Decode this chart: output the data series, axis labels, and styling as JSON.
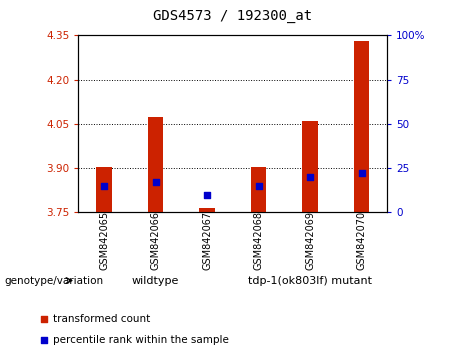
{
  "title": "GDS4573 / 192300_at",
  "samples": [
    "GSM842065",
    "GSM842066",
    "GSM842067",
    "GSM842068",
    "GSM842069",
    "GSM842070"
  ],
  "transformed_counts": [
    3.905,
    4.075,
    3.765,
    3.905,
    4.06,
    4.33
  ],
  "percentile_ranks": [
    15,
    17,
    10,
    15,
    20,
    22
  ],
  "ylim_left": [
    3.75,
    4.35
  ],
  "ylim_right": [
    0,
    100
  ],
  "yticks_left": [
    3.75,
    3.9,
    4.05,
    4.2,
    4.35
  ],
  "yticks_right": [
    0,
    25,
    50,
    75,
    100
  ],
  "grid_values": [
    3.9,
    4.05,
    4.2
  ],
  "bar_bottom": 3.75,
  "bar_color": "#CC2200",
  "dot_color": "#0000CC",
  "wildtype_label": "wildtype",
  "mutant_label": "tdp-1(ok803lf) mutant",
  "group_color": "#90EE90",
  "label_color_left": "#CC2200",
  "label_color_right": "#0000CC",
  "legend_red_label": "transformed count",
  "legend_blue_label": "percentile rank within the sample",
  "genotype_label": "genotype/variation",
  "title_fontsize": 10,
  "bg_color": "#C8C8C8",
  "plot_bg_color": "#FFFFFF"
}
